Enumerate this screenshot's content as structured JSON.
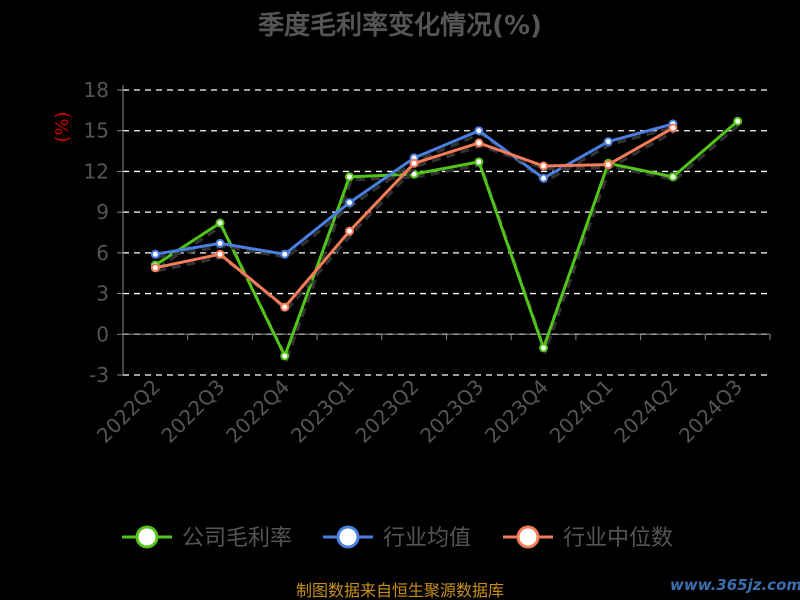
{
  "chart_data": {
    "type": "line",
    "title": "季度毛利率变化情况(%)",
    "ylabel": "(%)",
    "xlabel": "",
    "ylim": [
      -3,
      18
    ],
    "yticks": [
      "18",
      "15",
      "12",
      "9",
      "6",
      "3",
      "0",
      "-3"
    ],
    "categories": [
      "2022Q2",
      "2022Q3",
      "2022Q4",
      "2023Q1",
      "2023Q2",
      "2023Q3",
      "2023Q4",
      "2024Q1",
      "2024Q2",
      "2024Q3"
    ],
    "grid": true,
    "legend_position": "bottom",
    "series": [
      {
        "name": "公司毛利率",
        "color": "#52c41a",
        "values": [
          5.1,
          8.2,
          -1.6,
          11.6,
          11.8,
          12.7,
          -1.0,
          12.6,
          11.6,
          15.7
        ]
      },
      {
        "name": "行业均值",
        "color": "#4a7fe0",
        "values": [
          5.9,
          6.7,
          5.9,
          9.7,
          13.0,
          15.0,
          11.5,
          14.2,
          15.5,
          null
        ]
      },
      {
        "name": "行业中位数",
        "color": "#f47c5a",
        "values": [
          4.9,
          5.9,
          2.0,
          7.6,
          12.6,
          14.1,
          12.4,
          12.5,
          15.2,
          null
        ]
      }
    ]
  },
  "footer": {
    "source": "制图数据来自恒生聚源数据库"
  },
  "watermark": {
    "text": "www.365jz.com"
  }
}
